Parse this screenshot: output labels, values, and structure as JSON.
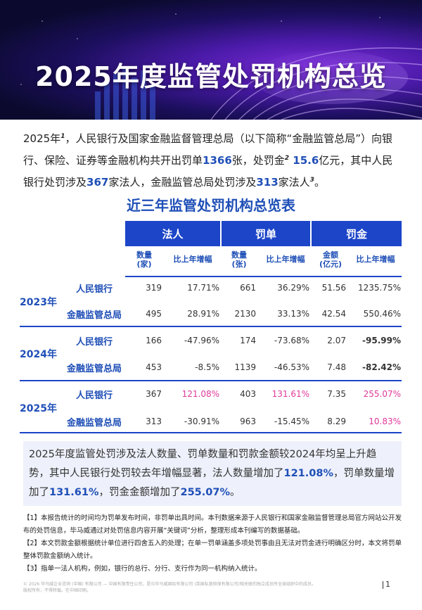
{
  "banner": {
    "title": "2025年度监管处罚机构总览"
  },
  "intro": {
    "p1": "2025年",
    "s1": "1",
    "p2": "，人民银行及国家金融监督管理总局（以下简称“金融监管总局”）向银行、保险、证券等金融机构共开出罚单",
    "b1": "1366",
    "p3": "张，处罚金",
    "s2": "2",
    "b2": " 15.6",
    "p4": "亿元，其中人民银行处罚涉及",
    "b3": "367",
    "p5": "家法人，金融监管总局处罚涉及",
    "b4": "313",
    "p6": "家法人",
    "s3": "3",
    "p7": "。"
  },
  "table": {
    "title": "近三年监管处罚机构总览表",
    "groups": [
      "法人",
      "罚单",
      "罚金"
    ],
    "subheaders": {
      "legal_count": "数量\n(家)",
      "legal_growth": "比上年增幅",
      "ticket_count": "数量\n(张)",
      "ticket_growth": "比上年增幅",
      "fine_amount": "金额\n(亿元)",
      "fine_growth": "比上年增幅"
    },
    "years": [
      {
        "year": "2023年",
        "rows": [
          {
            "org": "人民银行",
            "c1": "319",
            "c2": "17.71%",
            "c3": "661",
            "c4": "36.29%",
            "c5": "51.56",
            "c6": "1235.75%"
          },
          {
            "org": "金融监管总局",
            "c1": "495",
            "c2": "28.91%",
            "c3": "2130",
            "c4": "33.13%",
            "c5": "42.54",
            "c6": "550.46%"
          }
        ]
      },
      {
        "year": "2024年",
        "rows": [
          {
            "org": "人民银行",
            "c1": "166",
            "c2": "-47.96%",
            "c3": "174",
            "c4": "-73.68%",
            "c5": "2.07",
            "c6": "-95.99%"
          },
          {
            "org": "金融监管总局",
            "c1": "453",
            "c2": "-8.5%",
            "c3": "1139",
            "c4": "-46.53%",
            "c5": "7.48",
            "c6": "-82.42%"
          }
        ]
      },
      {
        "year": "2025年",
        "rows": [
          {
            "org": "人民银行",
            "c1": "367",
            "c2": "121.08%",
            "c3": "403",
            "c4": "131.61%",
            "c5": "7.35",
            "c6": "255.07%"
          },
          {
            "org": "金融监管总局",
            "c1": "313",
            "c2": "-30.91%",
            "c3": "963",
            "c4": "-15.45%",
            "c5": "8.29",
            "c6": "10.83%"
          }
        ]
      }
    ]
  },
  "summary": {
    "t1": "2025年度监管处罚涉及法人数量、罚单数量和罚款金额较2024年均呈上升趋势，其中人民银行处罚较去年增幅显著，法人数量增加了",
    "b1": "121.08%",
    "t2": "，罚单数量增加了",
    "b2": "131.61%",
    "t3": "，罚金金额增加了",
    "b3": "255.07%",
    "t4": "。"
  },
  "notes": [
    "【1】本报告统计的时间均为罚单发布时间，非罚单出具时间。本刊数据来源于人民银行和国家金融监督管理总局官方网站公开发布的处罚信息，毕马威通过对处罚信息内容开展“关键词”分析，整理形成本刊编写的数据基础。",
    "【2】本文罚款金额根据统计单位进行四舍五入的处理；在单一罚单涵盖多项处罚事由且无法对罚金进行明确区分时，本文将罚单整体罚款金额纳入统计。",
    "【3】指单一法人机构，例如，银行的总行、分行、支行作为同一机构纳入统计。"
  ],
  "footer": {
    "line1": "© 2026 毕马威企业咨询 (中国) 有限公司 — 中国有限责任公司，是与毕马威国际有限公司 (英国私营担保有限公司)相关联的独立成员所全球组织中的成员。",
    "line2": "版权所有，不得转载。在中国印刷。",
    "page": "1"
  },
  "colors": {
    "accent": "#1c45c8",
    "highlight": "#e0399a"
  }
}
